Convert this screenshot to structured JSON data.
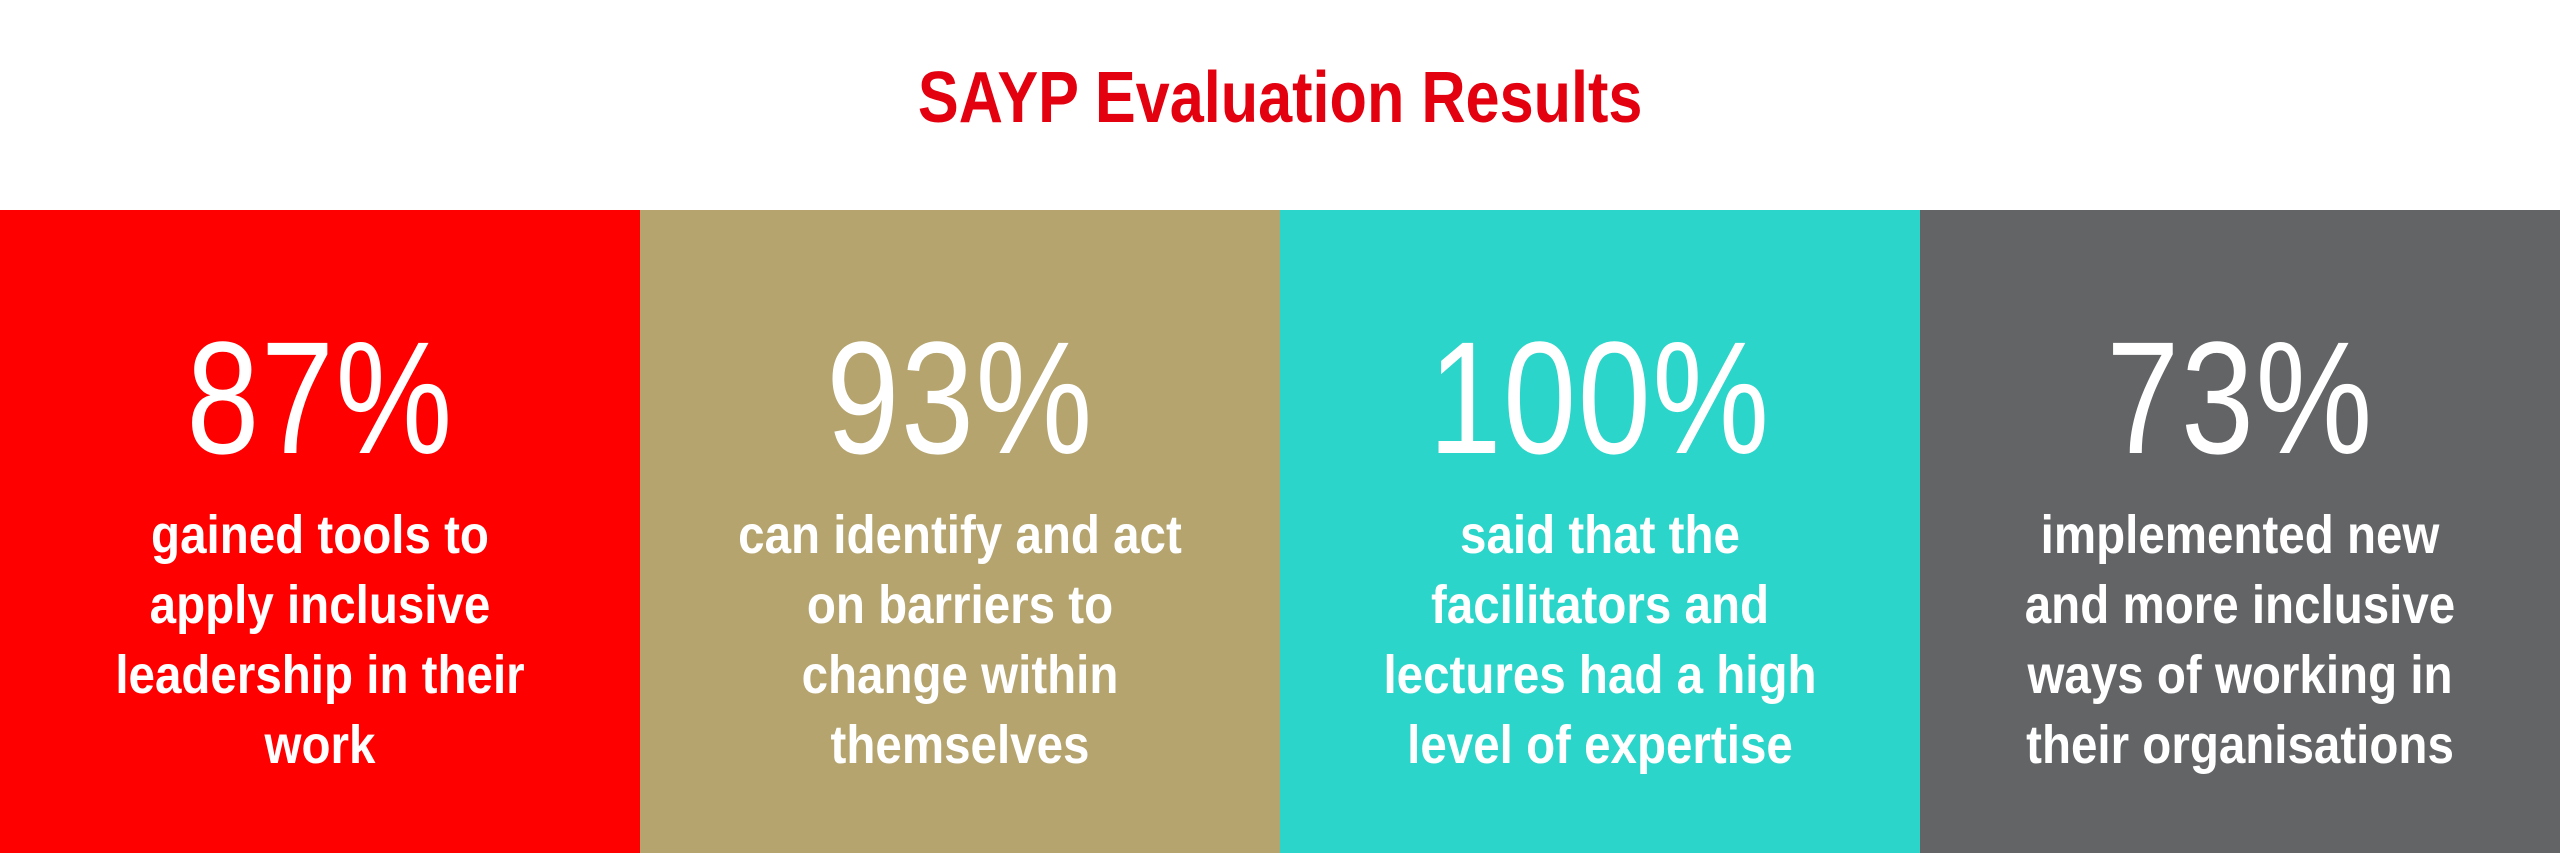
{
  "title": "SAYP Evaluation Results",
  "colors": {
    "title": "#e3000f",
    "panel_1": "#ff0000",
    "panel_2": "#b5a46e",
    "panel_3": "#2bd5c9",
    "panel_4": "#636466",
    "text": "#ffffff"
  },
  "panels": [
    {
      "stat": "87%",
      "description": "gained tools to apply inclusive leadership in their work"
    },
    {
      "stat": "93%",
      "description": "can identify and act on barriers to change within themselves"
    },
    {
      "stat": "100%",
      "description": "said that the facilitators and lectures had a high level of expertise"
    },
    {
      "stat": "73%",
      "description": "implemented new and more inclusive ways of working in their organisations"
    }
  ]
}
